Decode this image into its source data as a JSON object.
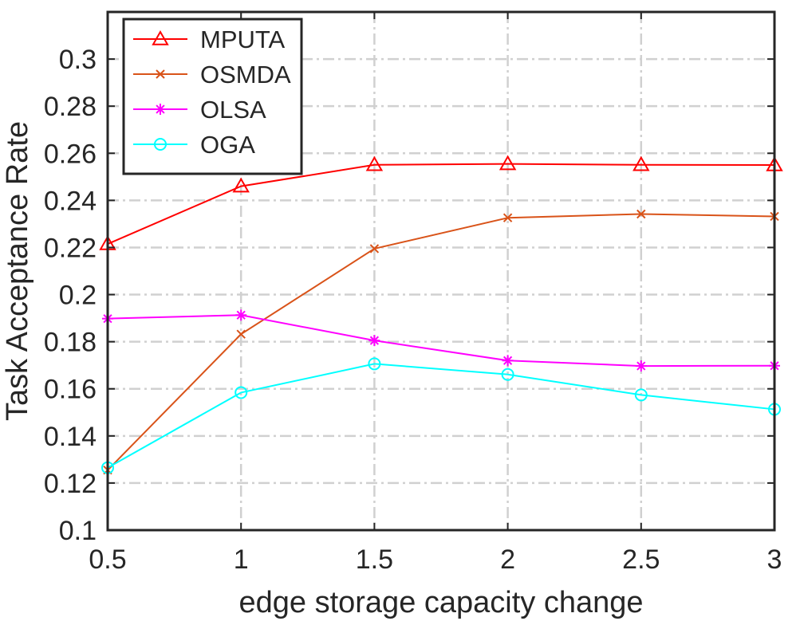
{
  "chart_data": {
    "type": "line",
    "title": "",
    "xlabel": "edge storage capacity change",
    "ylabel": "Task Acceptance Rate",
    "x": [
      0.5,
      1,
      1.5,
      2,
      2.5,
      3
    ],
    "x_tick_labels": [
      "0.5",
      "1",
      "1.5",
      "2",
      "2.5",
      "3"
    ],
    "xlim": [
      0.5,
      3
    ],
    "ylim": [
      0.1,
      0.32
    ],
    "y_ticks": [
      0.1,
      0.12,
      0.14,
      0.16,
      0.18,
      0.2,
      0.22,
      0.24,
      0.26,
      0.28,
      0.3
    ],
    "y_tick_labels": [
      "0.1",
      "0.12",
      "0.14",
      "0.16",
      "0.18",
      "0.2",
      "0.22",
      "0.24",
      "0.26",
      "0.28",
      "0.3"
    ],
    "grid": true,
    "legend_position": "top-left",
    "series": [
      {
        "name": "MPUTA",
        "color": "#ff0000",
        "marker": "triangle",
        "values": [
          0.2215,
          0.246,
          0.2551,
          0.2555,
          0.2551,
          0.255
        ]
      },
      {
        "name": "OSMDA",
        "color": "#d95319",
        "marker": "x",
        "values": [
          0.1255,
          0.1832,
          0.2195,
          0.2326,
          0.2342,
          0.2332
        ]
      },
      {
        "name": "OLSA",
        "color": "#ff00ff",
        "marker": "star",
        "values": [
          0.1898,
          0.1913,
          0.1805,
          0.172,
          0.1697,
          0.1698
        ]
      },
      {
        "name": "OGA",
        "color": "#00ffff",
        "marker": "circle",
        "values": [
          0.1265,
          0.1584,
          0.1706,
          0.1661,
          0.1574,
          0.1513
        ]
      }
    ]
  }
}
